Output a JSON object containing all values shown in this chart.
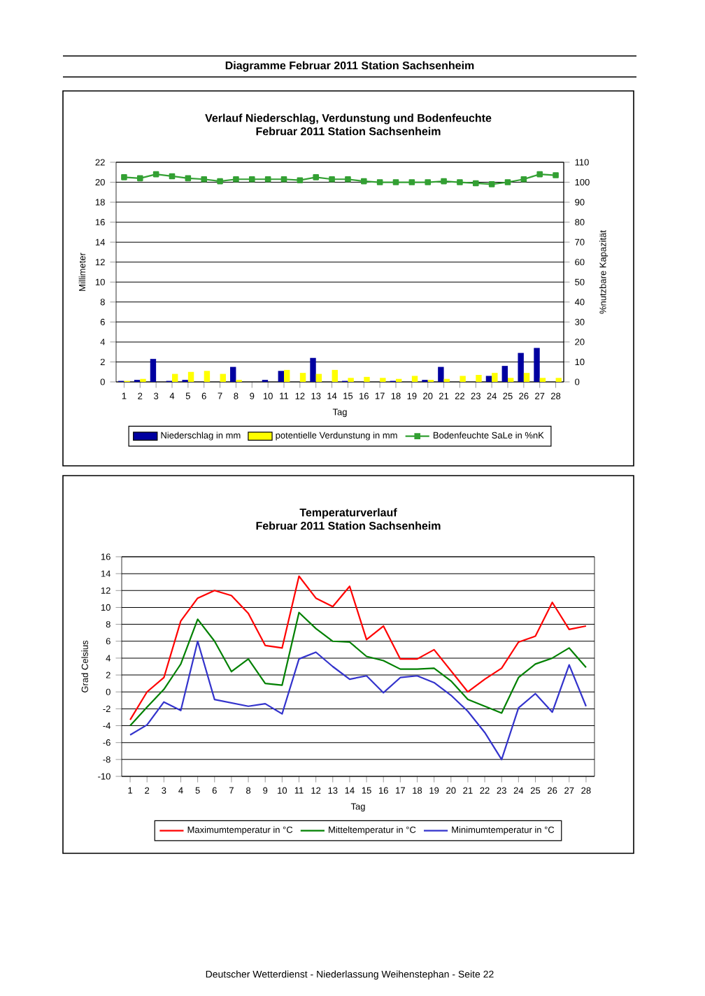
{
  "chart_data": [
    {
      "type": "bar",
      "title": "Verlauf Niederschlag, Verdunstung und Bodenfeuchte",
      "subtitle": "Februar 2011 Station Sachsenheim",
      "xlabel": "Tag",
      "ylabel": "Millimeter",
      "y2label": "%nutzbare Kapazität",
      "categories": [
        "1",
        "2",
        "3",
        "4",
        "5",
        "6",
        "7",
        "8",
        "9",
        "10",
        "11",
        "12",
        "13",
        "14",
        "15",
        "16",
        "17",
        "18",
        "19",
        "20",
        "21",
        "22",
        "23",
        "24",
        "25",
        "26",
        "27",
        "28"
      ],
      "ylim": [
        0,
        22
      ],
      "yticks": [
        0,
        2,
        4,
        6,
        8,
        10,
        12,
        14,
        16,
        18,
        20,
        22
      ],
      "y2lim": [
        0,
        110
      ],
      "y2ticks": [
        0,
        10,
        20,
        30,
        40,
        50,
        60,
        70,
        80,
        90,
        100,
        110
      ],
      "grid": "y",
      "legend": "bottom",
      "annotations": [
        "Diagramme Februar 2011 Station Sachsenheim"
      ],
      "series": [
        {
          "name": "Niederschlag in mm",
          "color": "#0000a0",
          "values": [
            0.1,
            0.2,
            2.3,
            0.1,
            0.2,
            0.0,
            0.0,
            1.5,
            0.0,
            0.2,
            1.1,
            0.0,
            2.4,
            0.0,
            0.1,
            0.0,
            0.0,
            0.1,
            0.0,
            0.2,
            1.5,
            0.0,
            0.0,
            0.6,
            1.6,
            2.9,
            3.4,
            0.0
          ]
        },
        {
          "name": "potentielle Verdunstung in mm",
          "color": "#ffff00",
          "values": [
            0.1,
            0.3,
            0.0,
            0.8,
            1.0,
            1.1,
            0.8,
            0.2,
            0.0,
            0.0,
            1.2,
            0.9,
            0.8,
            1.2,
            0.4,
            0.5,
            0.4,
            0.3,
            0.6,
            0.2,
            0.3,
            0.6,
            0.7,
            0.9,
            0.4,
            0.9,
            0.4,
            0.4
          ]
        },
        {
          "name": "Bodenfeuchte SaLe in %nK",
          "type": "line",
          "axis": "y2",
          "marker": "square",
          "color": "#33a033",
          "values": [
            102.5,
            102,
            104,
            103,
            102,
            101.5,
            100.5,
            101.5,
            101.5,
            101.5,
            101.5,
            101,
            102.5,
            101.5,
            101.5,
            100.5,
            100,
            100,
            100,
            100,
            100.5,
            100,
            99.5,
            99,
            100,
            101.5,
            104,
            103.5
          ]
        }
      ]
    },
    {
      "type": "line",
      "title": "Temperaturverlauf",
      "subtitle": "Februar 2011 Station Sachsenheim",
      "xlabel": "Tag",
      "ylabel": "Grad Celsius",
      "categories": [
        "1",
        "2",
        "3",
        "4",
        "5",
        "6",
        "7",
        "8",
        "9",
        "10",
        "11",
        "12",
        "13",
        "14",
        "15",
        "16",
        "17",
        "18",
        "19",
        "20",
        "21",
        "22",
        "23",
        "24",
        "25",
        "26",
        "27",
        "28"
      ],
      "ylim": [
        -10,
        16
      ],
      "yticks": [
        -10,
        -8,
        -6,
        -4,
        -2,
        0,
        2,
        4,
        6,
        8,
        10,
        12,
        14,
        16
      ],
      "grid": "y",
      "legend": "bottom",
      "annotations": [
        "Deutscher Wetterdienst - Niederlassung Weihenstephan - Seite 22"
      ],
      "series": [
        {
          "name": "Maximumtemperatur in °C",
          "color": "#ff0000",
          "values": [
            -3.3,
            0.0,
            1.7,
            8.4,
            11.1,
            12.0,
            11.4,
            9.3,
            5.5,
            5.2,
            13.7,
            11.1,
            10.1,
            12.5,
            6.2,
            7.8,
            3.9,
            3.9,
            5.0,
            2.5,
            0.0,
            1.5,
            2.8,
            5.9,
            6.6,
            10.6,
            7.4,
            7.8
          ]
        },
        {
          "name": "Mitteltemperatur in °C",
          "color": "#008000",
          "values": [
            -4.0,
            -1.8,
            0.3,
            3.3,
            8.6,
            6.0,
            2.4,
            3.9,
            1.0,
            0.8,
            9.4,
            7.5,
            6.0,
            5.9,
            4.2,
            3.7,
            2.7,
            2.7,
            2.8,
            1.3,
            -0.9,
            -1.7,
            -2.5,
            1.7,
            3.3,
            4.0,
            5.2,
            2.9
          ]
        },
        {
          "name": "Minimumtemperatur in °C",
          "color": "#3333cc",
          "values": [
            -5.1,
            -3.9,
            -1.2,
            -2.2,
            6.0,
            -0.9,
            -1.3,
            -1.7,
            -1.4,
            -2.6,
            3.9,
            4.7,
            3.0,
            1.5,
            1.9,
            -0.1,
            1.7,
            1.9,
            1.1,
            -0.4,
            -2.3,
            -4.8,
            -8.0,
            -1.9,
            -0.2,
            -2.4,
            3.2,
            -1.7
          ]
        }
      ]
    }
  ]
}
